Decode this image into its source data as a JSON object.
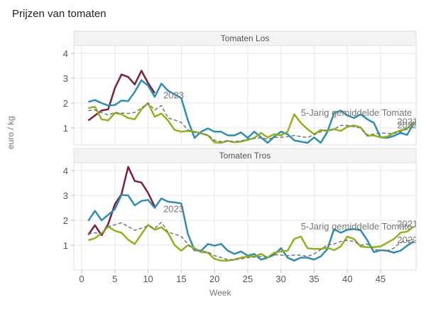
{
  "chart_data": {
    "type": "line",
    "title": "Prijzen van tomaten",
    "xlabel": "Week",
    "ylabel": "euro / kg",
    "xlim": [
      0,
      50
    ],
    "x_ticks": [
      0,
      5,
      10,
      15,
      20,
      25,
      30,
      35,
      40,
      45
    ],
    "y_ticks": [
      1,
      2,
      3,
      4
    ],
    "grid": true,
    "colors": {
      "2023": "#7b1f3c",
      "2022": "#2e8db0",
      "2021": "#8fb31d",
      "5-Jarig gemiddelde": "#777777"
    },
    "panels": [
      {
        "title": "Tomaten Los",
        "ylim": [
          0.2,
          4.3
        ],
        "labels": [
          {
            "text": "2023",
            "x": 12.3,
            "y": 2.3
          },
          {
            "text": "5-Jarig gemiddelde Tomate",
            "x": 33,
            "y": 1.6
          },
          {
            "text": "2022",
            "x": 47.5,
            "y": 1.1
          },
          {
            "text": "2021",
            "x": 47.5,
            "y": 1.25
          }
        ],
        "series": [
          {
            "name": "2023",
            "x": [
              1,
              2,
              3,
              4,
              5,
              6,
              7,
              8,
              9,
              10,
              11
            ],
            "values": [
              1.3,
              1.5,
              1.7,
              1.75,
              2.6,
              3.15,
              3.05,
              2.75,
              3.3,
              2.8,
              2.4
            ]
          },
          {
            "name": "2022",
            "x": [
              1,
              2,
              3,
              4,
              5,
              6,
              7,
              8,
              9,
              10,
              11,
              12,
              13,
              14,
              15,
              16,
              17,
              18,
              19,
              20,
              21,
              22,
              23,
              24,
              25,
              26,
              27,
              28,
              29,
              30,
              31,
              32,
              33,
              34,
              35,
              36,
              37,
              38,
              39,
              40,
              41,
              42,
              43,
              44,
              45,
              46,
              47,
              48,
              49,
              50
            ],
            "values": [
              2.05,
              2.12,
              2.0,
              1.9,
              1.92,
              2.1,
              2.08,
              2.45,
              2.92,
              2.7,
              2.25,
              2.78,
              2.5,
              2.35,
              2.2,
              1.3,
              0.6,
              0.85,
              0.98,
              0.85,
              0.85,
              0.7,
              0.7,
              0.82,
              0.6,
              0.85,
              0.62,
              0.4,
              0.65,
              0.85,
              0.75,
              0.5,
              0.45,
              0.4,
              0.62,
              0.4,
              0.85,
              1.6,
              1.7,
              1.5,
              1.4,
              1.55,
              1.35,
              1.2,
              0.62,
              0.6,
              0.68,
              0.8,
              0.72,
              1.2
            ]
          },
          {
            "name": "2021",
            "x": [
              1,
              2,
              3,
              4,
              5,
              6,
              7,
              8,
              9,
              10,
              11,
              12,
              13,
              14,
              15,
              16,
              17,
              18,
              19,
              20,
              21,
              22,
              23,
              24,
              25,
              26,
              27,
              28,
              29,
              30,
              31,
              32,
              33,
              34,
              35,
              36,
              37,
              38,
              39,
              40,
              41,
              42,
              43,
              44,
              45,
              46,
              47,
              48,
              49,
              50
            ],
            "values": [
              1.8,
              1.85,
              1.35,
              1.3,
              1.6,
              1.55,
              1.4,
              1.35,
              1.75,
              2.0,
              1.45,
              1.58,
              1.3,
              0.92,
              0.85,
              0.88,
              0.85,
              0.78,
              0.7,
              0.42,
              0.4,
              0.48,
              0.42,
              0.45,
              0.52,
              0.6,
              0.8,
              0.62,
              0.75,
              0.7,
              0.85,
              1.55,
              1.2,
              0.95,
              0.75,
              0.92,
              0.88,
              0.95,
              0.88,
              1.05,
              1.1,
              1.02,
              0.68,
              0.7,
              0.62,
              0.65,
              0.8,
              0.9,
              0.98,
              1.25
            ]
          },
          {
            "name": "5-Jarig gemiddelde",
            "x": [
              1,
              2,
              3,
              4,
              5,
              6,
              7,
              8,
              9,
              10,
              11,
              12,
              13,
              14,
              15,
              16,
              17,
              18,
              19,
              20,
              21,
              22,
              23,
              24,
              25,
              26,
              27,
              28,
              29,
              30,
              31,
              32,
              33,
              34,
              35,
              36,
              37,
              38,
              39,
              40,
              41,
              42,
              43,
              44,
              45,
              46,
              47,
              48,
              49,
              50
            ],
            "values": [
              1.7,
              1.72,
              1.62,
              1.52,
              1.62,
              1.6,
              1.58,
              1.62,
              1.8,
              2.0,
              1.72,
              1.9,
              1.4,
              1.32,
              1.22,
              0.92,
              0.82,
              0.78,
              0.72,
              0.5,
              0.45,
              0.48,
              0.45,
              0.48,
              0.55,
              0.58,
              0.6,
              0.55,
              0.62,
              0.62,
              0.65,
              0.7,
              0.65,
              0.62,
              0.72,
              0.85,
              0.92,
              0.95,
              1.1,
              1.1,
              1.05,
              1.0,
              0.72,
              0.75,
              0.8,
              0.78,
              0.78,
              0.85,
              0.95,
              1.05
            ]
          }
        ]
      },
      {
        "title": "Tomaten Tros",
        "ylim": [
          0.2,
          4.3
        ],
        "labels": [
          {
            "text": "2023",
            "x": 12.3,
            "y": 2.45
          },
          {
            "text": "5-Jarig gemiddelde Tomate",
            "x": 33,
            "y": 1.75
          },
          {
            "text": "2021",
            "x": 47.5,
            "y": 1.85
          },
          {
            "text": "2022",
            "x": 47.5,
            "y": 1.2
          }
        ],
        "series": [
          {
            "name": "2023",
            "x": [
              1,
              2,
              3,
              4,
              5,
              6,
              7,
              8,
              9,
              10,
              11
            ],
            "values": [
              1.42,
              1.8,
              1.4,
              1.85,
              2.65,
              3.05,
              4.15,
              3.58,
              3.52,
              3.1,
              2.55
            ]
          },
          {
            "name": "2022",
            "x": [
              1,
              2,
              3,
              4,
              5,
              6,
              7,
              8,
              9,
              10,
              11,
              12,
              13,
              14,
              15,
              16,
              17,
              18,
              19,
              20,
              21,
              22,
              23,
              24,
              25,
              26,
              27,
              28,
              29,
              30,
              31,
              32,
              33,
              34,
              35,
              36,
              37,
              38,
              39,
              40,
              41,
              42,
              43,
              44,
              45,
              46,
              47,
              48,
              49,
              50
            ],
            "values": [
              1.98,
              2.38,
              2.0,
              2.22,
              2.45,
              3.02,
              3.0,
              2.6,
              2.78,
              2.82,
              2.5,
              2.88,
              2.75,
              2.72,
              2.68,
              1.45,
              0.8,
              0.78,
              1.05,
              0.98,
              1.05,
              0.78,
              0.65,
              0.75,
              0.58,
              0.65,
              0.42,
              0.5,
              0.62,
              0.88,
              0.5,
              0.38,
              0.5,
              0.5,
              0.42,
              0.55,
              0.85,
              1.65,
              1.5,
              1.62,
              1.65,
              1.6,
              1.2,
              0.72,
              0.8,
              0.78,
              0.7,
              0.78,
              0.98,
              1.15
            ]
          },
          {
            "name": "2021",
            "x": [
              1,
              2,
              3,
              4,
              5,
              6,
              7,
              8,
              9,
              10,
              11,
              12,
              13,
              14,
              15,
              16,
              17,
              18,
              19,
              20,
              21,
              22,
              23,
              24,
              25,
              26,
              27,
              28,
              29,
              30,
              31,
              32,
              33,
              34,
              35,
              36,
              37,
              38,
              39,
              40,
              41,
              42,
              43,
              44,
              45,
              46,
              47,
              48,
              49,
              50
            ],
            "values": [
              1.2,
              1.28,
              1.48,
              1.75,
              1.58,
              1.5,
              1.22,
              1.05,
              1.45,
              1.82,
              1.62,
              1.72,
              1.5,
              1.0,
              0.78,
              1.0,
              0.88,
              0.72,
              0.7,
              0.45,
              0.38,
              0.38,
              0.42,
              0.5,
              0.55,
              0.55,
              0.65,
              0.5,
              0.7,
              0.75,
              0.78,
              1.25,
              1.35,
              0.88,
              0.85,
              0.85,
              0.9,
              0.8,
              0.95,
              1.35,
              1.25,
              0.95,
              0.92,
              0.92,
              0.95,
              1.1,
              1.25,
              1.5,
              1.55,
              1.75
            ]
          },
          {
            "name": "5-Jarig gemiddelde",
            "x": [
              1,
              2,
              3,
              4,
              5,
              6,
              7,
              8,
              9,
              10,
              11,
              12,
              13,
              14,
              15,
              16,
              17,
              18,
              19,
              20,
              21,
              22,
              23,
              24,
              25,
              26,
              27,
              28,
              29,
              30,
              31,
              32,
              33,
              34,
              35,
              36,
              37,
              38,
              39,
              40,
              41,
              42,
              43,
              44,
              45,
              46,
              47,
              48,
              49,
              50
            ],
            "values": [
              1.45,
              1.5,
              1.45,
              1.75,
              1.82,
              1.9,
              1.75,
              1.6,
              1.68,
              1.78,
              1.68,
              1.92,
              1.52,
              1.45,
              1.35,
              1.05,
              0.78,
              0.78,
              0.72,
              0.58,
              0.5,
              0.42,
              0.42,
              0.45,
              0.5,
              0.52,
              0.55,
              0.52,
              0.62,
              0.6,
              0.58,
              0.6,
              0.6,
              0.55,
              0.65,
              0.82,
              1.02,
              1.05,
              1.15,
              1.2,
              1.15,
              1.0,
              1.05,
              0.82,
              0.8,
              0.78,
              0.88,
              1.12,
              1.18,
              1.22
            ]
          }
        ]
      }
    ]
  }
}
